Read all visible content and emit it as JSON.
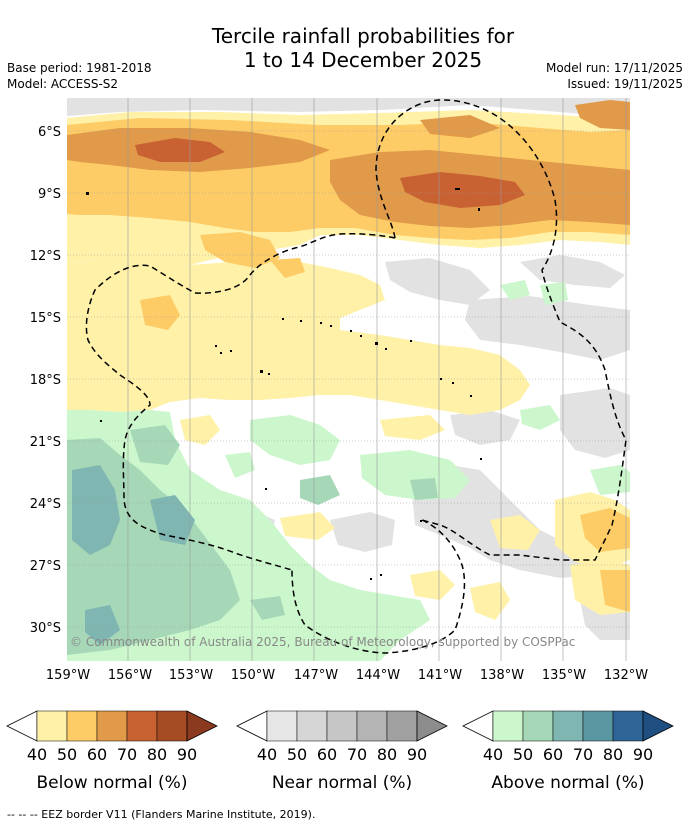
{
  "title": {
    "line1": "Tercile rainfall probabilities for",
    "line2": "1 to 14 December 2025"
  },
  "meta": {
    "base_period": "Base period: 1981-2018",
    "model": "Model: ACCESS-S2",
    "model_run": "Model run: 17/11/2025",
    "issued": "Issued: 19/11/2025"
  },
  "map": {
    "lat_ticks": [
      "6°S",
      "9°S",
      "12°S",
      "15°S",
      "18°S",
      "21°S",
      "24°S",
      "27°S",
      "30°S"
    ],
    "lon_ticks": [
      "159°W",
      "156°W",
      "153°W",
      "150°W",
      "147°W",
      "144°W",
      "141°W",
      "138°W",
      "135°W",
      "132°W"
    ],
    "copyright": "© Commonwealth of Australia 2025, Bureau of Meteorology, supported by COSPPac"
  },
  "legend": {
    "ticks": [
      "40",
      "50",
      "60",
      "70",
      "80",
      "90"
    ],
    "colorbars": [
      {
        "label": "Below normal (%)",
        "colors": [
          "#fff1a8",
          "#fdcc67",
          "#e09a49",
          "#c96233",
          "#a54c25",
          "#8b3a1f"
        ]
      },
      {
        "label": "Near normal (%)",
        "colors": [
          "#e6e6e6",
          "#d6d6d6",
          "#c6c6c6",
          "#b4b4b4",
          "#a0a0a0",
          "#8c8c8c"
        ]
      },
      {
        "label": "Above normal (%)",
        "colors": [
          "#ccf7cc",
          "#a6d8b8",
          "#7fb6b2",
          "#5a97a3",
          "#2f6596",
          "#1e4f80"
        ]
      }
    ]
  },
  "footnote": "-- -- -- EEZ border V11 (Flanders Marine Institute, 2019)."
}
